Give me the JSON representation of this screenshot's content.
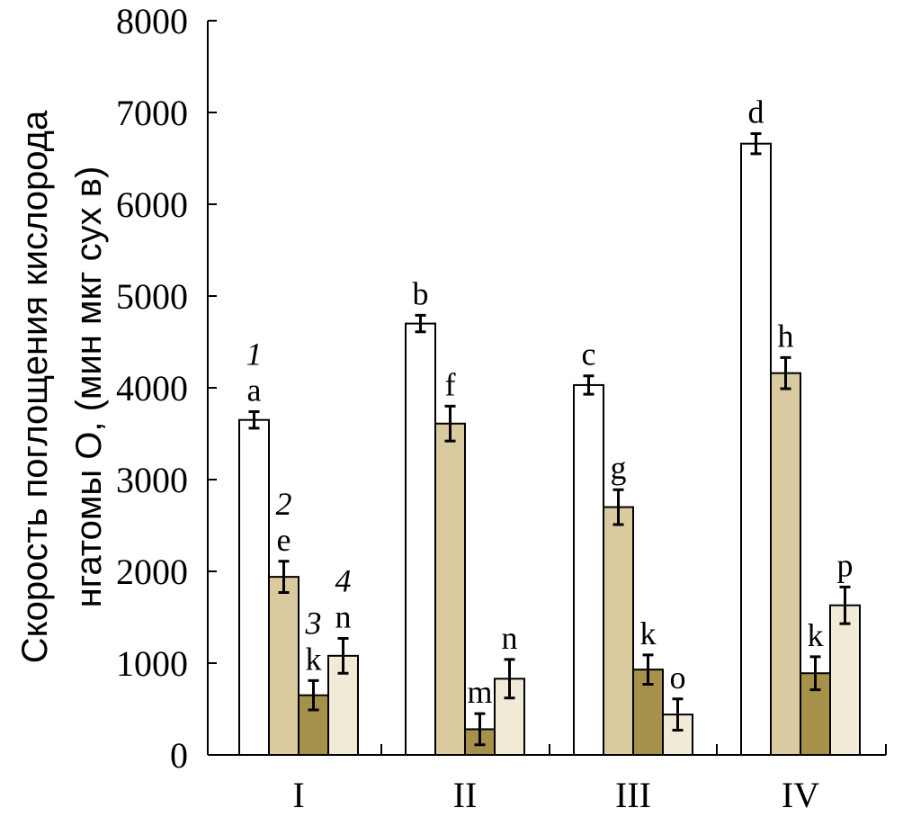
{
  "chart_data": {
    "type": "bar",
    "title": "",
    "ylabel_line1": "Скорость поглощения кислорода",
    "ylabel_line2": "нгатомы O, (мин мкг сух в)",
    "xlabel": "",
    "ylim": [
      0,
      8000
    ],
    "yticks": [
      0,
      1000,
      2000,
      3000,
      4000,
      5000,
      6000,
      7000,
      8000
    ],
    "categories": [
      "I",
      "II",
      "III",
      "IV"
    ],
    "grid": false,
    "legend": "none",
    "series": [
      {
        "name": "1",
        "color": "#ffffff",
        "values": [
          3650,
          4700,
          4030,
          6660
        ],
        "errors": [
          90,
          90,
          100,
          110
        ],
        "letters": [
          "a",
          "b",
          "c",
          "d"
        ]
      },
      {
        "name": "2",
        "color": "#d9caa0",
        "values": [
          1940,
          3610,
          2700,
          4160
        ],
        "errors": [
          170,
          190,
          190,
          170
        ],
        "letters": [
          "e",
          "f",
          "g",
          "h"
        ]
      },
      {
        "name": "3",
        "color": "#a6914a",
        "values": [
          650,
          280,
          930,
          890
        ],
        "errors": [
          160,
          170,
          160,
          180
        ],
        "letters": [
          "k",
          "m",
          "k",
          "k"
        ]
      },
      {
        "name": "4",
        "color": "#f1ead6",
        "values": [
          1080,
          830,
          440,
          1630
        ],
        "errors": [
          190,
          210,
          170,
          200
        ],
        "letters": [
          "n",
          "n",
          "o",
          "p"
        ]
      }
    ],
    "series_number_labels_category": "I"
  }
}
